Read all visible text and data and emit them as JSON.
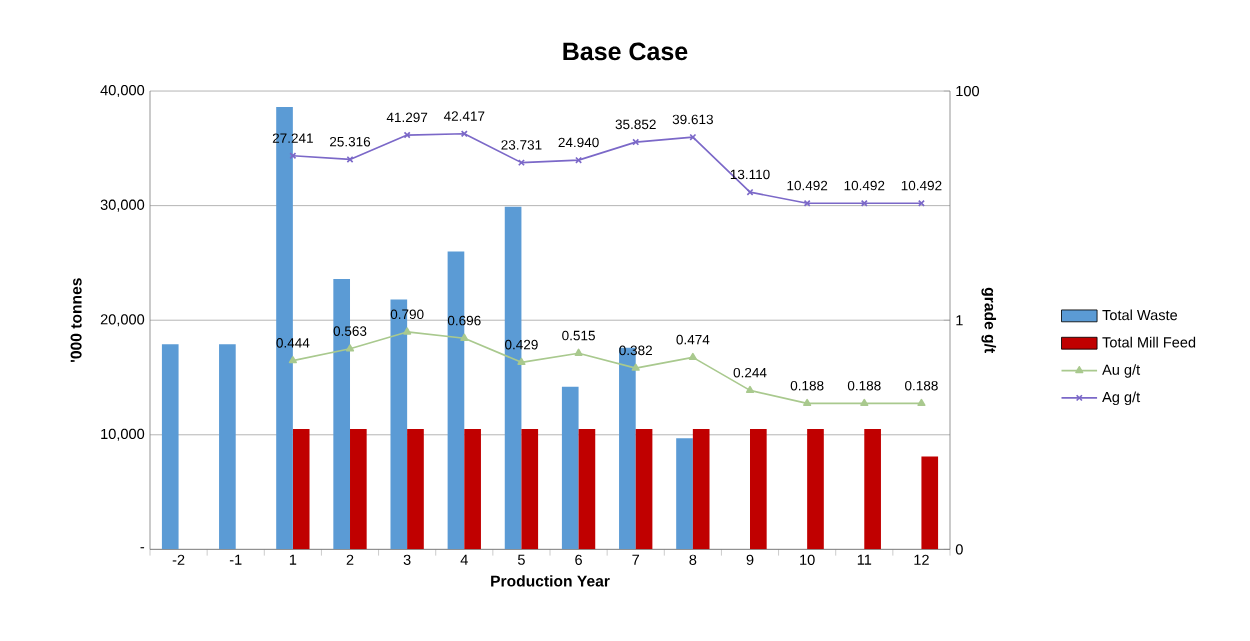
{
  "chart_data": {
    "type": "bar",
    "title": "Base Case",
    "xlabel": "Production Year",
    "ylabel": "'000 tonnes",
    "y2label": "grade g/t",
    "categories": [
      "-2",
      "-1",
      "1",
      "2",
      "3",
      "4",
      "5",
      "6",
      "7",
      "8",
      "9",
      "10",
      "11",
      "12"
    ],
    "series": [
      {
        "name": "Total Waste",
        "type": "bar",
        "color": "#5b9bd5",
        "values": [
          17900,
          17900,
          38600,
          23600,
          21800,
          26000,
          29900,
          14200,
          17600,
          9700,
          null,
          null,
          null,
          null
        ]
      },
      {
        "name": "Total Mill Feed",
        "type": "bar",
        "color": "#c00000",
        "values": [
          null,
          null,
          10500,
          10500,
          10500,
          10500,
          10500,
          10500,
          10500,
          10500,
          10500,
          10500,
          10500,
          8100
        ]
      },
      {
        "name": "Au g/t",
        "type": "line",
        "axis": "y2",
        "marker": "triangle",
        "color": "#a9c98e",
        "values": [
          null,
          null,
          0.444,
          0.563,
          0.79,
          0.696,
          0.429,
          0.515,
          0.382,
          0.474,
          0.244,
          0.188,
          0.188,
          0.188
        ],
        "value_labels": [
          null,
          null,
          "0.444",
          "0.563",
          "0.790",
          "0.696",
          "0.429",
          "0.515",
          "0.382",
          "0.474",
          "0.244",
          "0.188",
          "0.188",
          "0.188"
        ]
      },
      {
        "name": "Ag g/t",
        "type": "line",
        "axis": "y2",
        "marker": "cross",
        "color": "#7b68c8",
        "values": [
          null,
          null,
          27.241,
          25.316,
          41.297,
          42.417,
          23.731,
          24.94,
          35.852,
          39.613,
          13.11,
          10.492,
          10.492,
          10.492
        ],
        "value_labels": [
          null,
          null,
          "27.241",
          "25.316",
          "41.297",
          "42.417",
          "23.731",
          "24.940",
          "35.852",
          "39.613",
          "13.110",
          "10.492",
          "10.492",
          "10.492"
        ]
      }
    ],
    "ylim": [
      0,
      40000
    ],
    "yticks": [
      {
        "value": 0,
        "label": "-"
      },
      {
        "value": 10000,
        "label": "10,000"
      },
      {
        "value": 20000,
        "label": "20,000"
      },
      {
        "value": 30000,
        "label": "30,000"
      },
      {
        "value": 40000,
        "label": "40,000"
      }
    ],
    "y2lim": [
      0.01,
      100
    ],
    "y2ticks": [
      {
        "value": 0.01,
        "label": "0"
      },
      1,
      100
    ],
    "log": "y2",
    "grid": "y",
    "legend": "right"
  }
}
